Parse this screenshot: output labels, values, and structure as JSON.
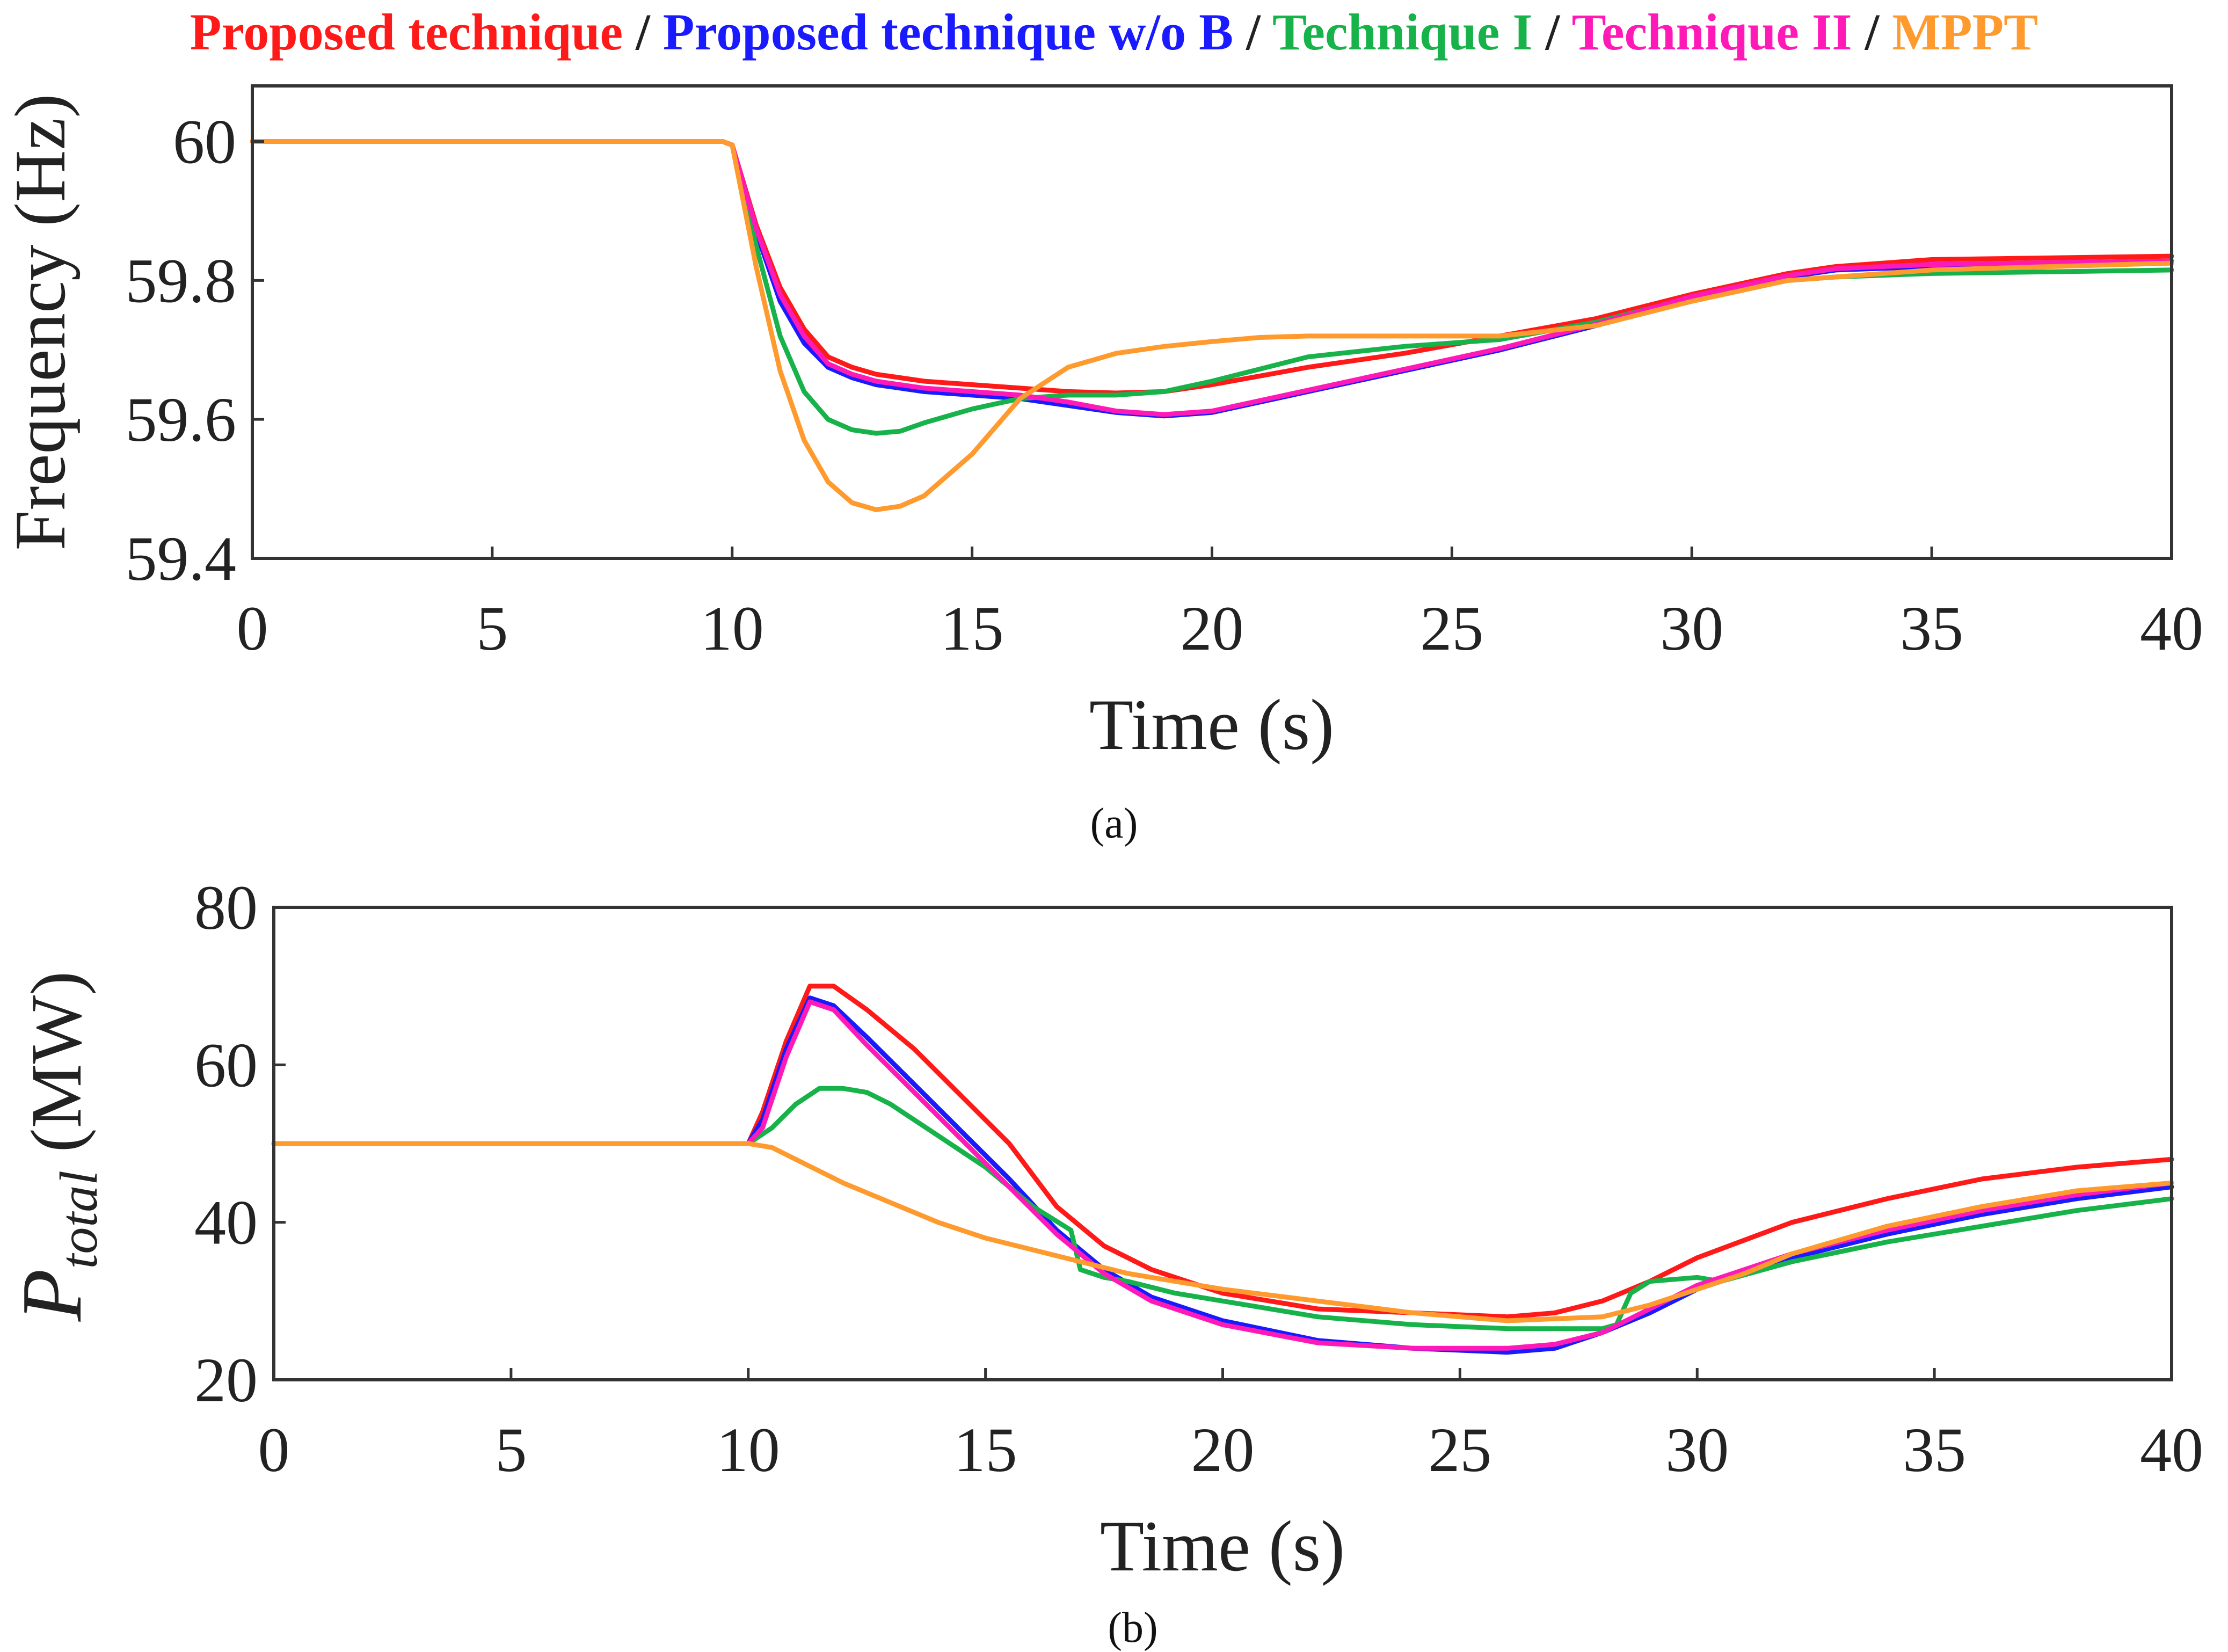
{
  "legend": [
    {
      "label": "Proposed technique",
      "color": "#ff1a1a"
    },
    {
      "label": "Proposed technique w/o B",
      "color": "#1a1aff"
    },
    {
      "label": "Technique I",
      "color": "#17b34a"
    },
    {
      "label": "Technique II",
      "color": "#ff1ab8"
    },
    {
      "label": "MPPT",
      "color": "#ff9a2e"
    }
  ],
  "legend_separator": " / ",
  "chart_data": [
    {
      "type": "line",
      "caption": "(a)",
      "xlabel": "Time (s)",
      "ylabel": "Frequency (Hz)",
      "xlim": [
        0,
        40
      ],
      "ylim": [
        59.4,
        60.08
      ],
      "xticks": [
        0,
        5,
        10,
        15,
        20,
        25,
        30,
        35,
        40
      ],
      "yticks": [
        59.4,
        59.6,
        59.8,
        60
      ],
      "ytick_labels": [
        "59.4",
        "59.6",
        "59.8",
        "60"
      ],
      "series": [
        {
          "name": "Proposed technique",
          "color": "#ff1a1a",
          "x": [
            0,
            9.8,
            10,
            10.5,
            11,
            11.5,
            12,
            12.5,
            13,
            14,
            15,
            16,
            17,
            18,
            19,
            20,
            22,
            24,
            26,
            28,
            30,
            32,
            33,
            35,
            40
          ],
          "y": [
            60,
            60,
            59.995,
            59.88,
            59.79,
            59.73,
            59.69,
            59.675,
            59.665,
            59.655,
            59.65,
            59.645,
            59.64,
            59.638,
            59.64,
            59.65,
            59.675,
            59.695,
            59.72,
            59.745,
            59.78,
            59.81,
            59.82,
            59.83,
            59.835
          ]
        },
        {
          "name": "Proposed technique w/o B",
          "color": "#1a1aff",
          "x": [
            0,
            9.8,
            10,
            10.5,
            11,
            11.5,
            12,
            12.5,
            13,
            14,
            15,
            16,
            17,
            18,
            19,
            20,
            22,
            24,
            26,
            28,
            30,
            32,
            33,
            35,
            40
          ],
          "y": [
            60,
            60,
            59.995,
            59.87,
            59.77,
            59.71,
            59.675,
            59.66,
            59.65,
            59.64,
            59.635,
            59.63,
            59.62,
            59.61,
            59.605,
            59.61,
            59.64,
            59.67,
            59.7,
            59.735,
            59.775,
            59.805,
            59.815,
            59.82,
            59.825
          ]
        },
        {
          "name": "Technique I",
          "color": "#17b34a",
          "x": [
            0,
            9.8,
            10,
            10.5,
            11,
            11.5,
            12,
            12.5,
            13,
            13.5,
            14,
            15,
            16,
            17,
            18,
            19,
            20,
            22,
            24,
            26,
            28,
            30,
            32,
            33,
            35,
            40
          ],
          "y": [
            60,
            60,
            59.995,
            59.85,
            59.72,
            59.64,
            59.6,
            59.585,
            59.58,
            59.583,
            59.595,
            59.615,
            59.63,
            59.635,
            59.635,
            59.64,
            59.655,
            59.69,
            59.705,
            59.715,
            59.74,
            59.775,
            59.8,
            59.805,
            59.81,
            59.815
          ]
        },
        {
          "name": "Technique II",
          "color": "#ff1ab8",
          "x": [
            0,
            9.8,
            10,
            10.5,
            11,
            11.5,
            12,
            12.5,
            13,
            14,
            15,
            16,
            17,
            18,
            19,
            20,
            22,
            24,
            26,
            28,
            30,
            32,
            33,
            35,
            40
          ],
          "y": [
            60,
            60,
            59.995,
            59.875,
            59.78,
            59.72,
            59.68,
            59.665,
            59.655,
            59.645,
            59.64,
            59.635,
            59.625,
            59.612,
            59.607,
            59.612,
            59.642,
            59.672,
            59.702,
            59.737,
            59.777,
            59.807,
            59.817,
            59.823,
            59.828
          ]
        },
        {
          "name": "MPPT",
          "color": "#ff9a2e",
          "x": [
            0,
            9.8,
            10,
            10.5,
            11,
            11.5,
            12,
            12.5,
            13,
            13.5,
            14,
            15,
            16,
            17,
            18,
            19,
            20,
            21,
            22,
            24,
            26,
            28,
            30,
            32,
            35,
            40
          ],
          "y": [
            60,
            60,
            59.995,
            59.82,
            59.67,
            59.57,
            59.51,
            59.48,
            59.47,
            59.475,
            59.49,
            59.55,
            59.63,
            59.675,
            59.695,
            59.705,
            59.712,
            59.718,
            59.72,
            59.72,
            59.72,
            59.735,
            59.77,
            59.8,
            59.815,
            59.825
          ]
        }
      ]
    },
    {
      "type": "line",
      "caption": "(b)",
      "xlabel": "Time (s)",
      "ylabel_main": "P",
      "ylabel_sub": "total",
      "ylabel_unit": " (MW)",
      "xlim": [
        0,
        40
      ],
      "ylim": [
        20,
        80
      ],
      "xticks": [
        0,
        5,
        10,
        15,
        20,
        25,
        30,
        35,
        40
      ],
      "yticks": [
        20,
        40,
        60,
        80
      ],
      "ytick_labels": [
        "20",
        "40",
        "60",
        "80"
      ],
      "series": [
        {
          "name": "Proposed technique",
          "color": "#ff1a1a",
          "x": [
            0,
            10,
            10.3,
            10.8,
            11.3,
            11.8,
            12.5,
            13.5,
            14.5,
            15.5,
            16.5,
            17.5,
            18.5,
            20,
            22,
            24,
            26,
            27,
            28,
            29,
            30,
            32,
            34,
            36,
            38,
            40
          ],
          "y": [
            50,
            50,
            54,
            63,
            70,
            70,
            67,
            62,
            56,
            50,
            42,
            37,
            34,
            31,
            29,
            28.5,
            28,
            28.5,
            30,
            32.5,
            35.5,
            40,
            43,
            45.5,
            47,
            48
          ]
        },
        {
          "name": "Proposed technique w/o B",
          "color": "#1a1aff",
          "x": [
            0,
            10,
            10.3,
            10.8,
            11.3,
            11.8,
            12.5,
            13.5,
            14.5,
            15.5,
            16.5,
            17.5,
            18.5,
            20,
            22,
            24,
            26,
            27,
            28,
            29,
            30,
            32,
            34,
            36,
            38,
            40
          ],
          "y": [
            50,
            50,
            53,
            62,
            68.5,
            67.5,
            63.5,
            57.5,
            51.5,
            45.5,
            39,
            34,
            30.5,
            27.5,
            25,
            24,
            23.5,
            24,
            26,
            28.5,
            31.5,
            35.5,
            38.5,
            41,
            43,
            44.5
          ]
        },
        {
          "name": "Technique I",
          "color": "#17b34a",
          "x": [
            0,
            10,
            10.5,
            11,
            11.5,
            12,
            12.5,
            13,
            14,
            15,
            16,
            16.8,
            17,
            17.5,
            18,
            19,
            20,
            22,
            24,
            26,
            28,
            28.3,
            28.6,
            29,
            30,
            30.5,
            32,
            34,
            36,
            38,
            40
          ],
          "y": [
            50,
            50,
            52,
            55,
            57,
            57,
            56.5,
            55,
            51,
            47,
            42,
            39,
            34,
            33,
            32.5,
            31,
            30,
            28,
            27,
            26.5,
            26.5,
            27,
            31,
            32.5,
            33,
            32.5,
            35,
            37.5,
            39.5,
            41.5,
            43
          ]
        },
        {
          "name": "Technique II",
          "color": "#ff1ab8",
          "x": [
            0,
            10,
            10.3,
            10.8,
            11.3,
            11.8,
            12.5,
            13.5,
            14.5,
            15.5,
            16.5,
            17.5,
            18.5,
            20,
            22,
            24,
            26,
            27,
            28,
            29,
            30,
            32,
            34,
            36,
            38,
            40
          ],
          "y": [
            50,
            50,
            52,
            61,
            68,
            67,
            62.5,
            56.5,
            50.5,
            44.5,
            38.5,
            33.5,
            30,
            27,
            24.7,
            24,
            24,
            24.5,
            26,
            29,
            32,
            36,
            39,
            41.5,
            43.5,
            45
          ]
        },
        {
          "name": "MPPT",
          "color": "#ff9a2e",
          "x": [
            0,
            10,
            10.5,
            11,
            12,
            13,
            14,
            15,
            16,
            17,
            18,
            19,
            20,
            22,
            24,
            26,
            28,
            29,
            30,
            31,
            32,
            34,
            36,
            38,
            40
          ],
          "y": [
            50,
            50,
            49.5,
            48,
            45,
            42.5,
            40,
            38,
            36.5,
            35,
            33.5,
            32.5,
            31.5,
            30,
            28.5,
            27.5,
            28,
            29.5,
            31.5,
            33.5,
            36,
            39.5,
            42,
            44,
            45
          ]
        }
      ]
    }
  ]
}
